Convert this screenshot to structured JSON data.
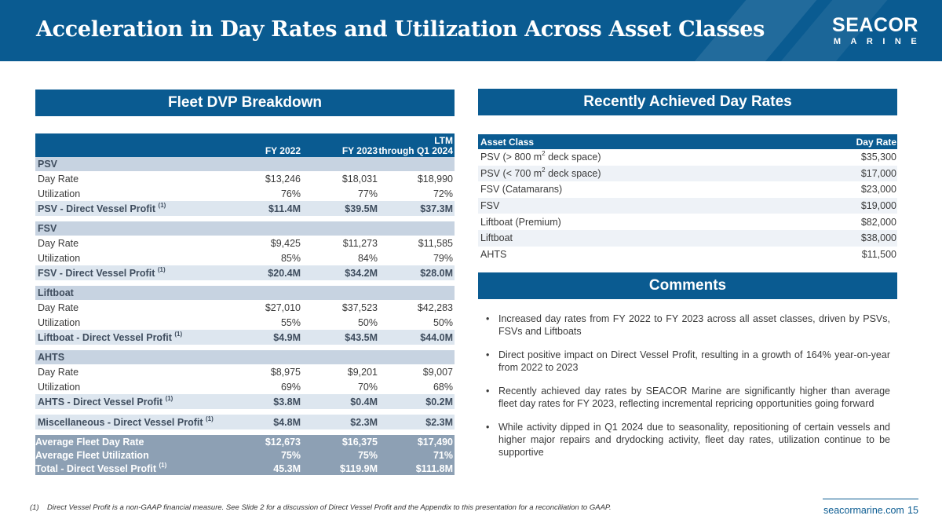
{
  "title": "Acceleration in Day Rates and Utilization Across Asset Classes",
  "logo": {
    "main": "SEACOR",
    "sub": "MARINE"
  },
  "left_panel": {
    "heading": "Fleet DVP Breakdown",
    "columns": [
      "",
      "FY 2022",
      "FY 2023",
      "LTM",
      "through Q1 2024"
    ],
    "sections": [
      {
        "name": "PSV",
        "day_rate": [
          "Day Rate",
          "$13,246",
          "$18,031",
          "$18,990"
        ],
        "utilization": [
          "Utilization",
          "76%",
          "77%",
          "72%"
        ],
        "dvp": [
          "PSV - Direct Vessel Profit",
          "$11.4M",
          "$39.5M",
          "$37.3M"
        ]
      },
      {
        "name": "FSV",
        "day_rate": [
          "Day Rate",
          "$9,425",
          "$11,273",
          "$11,585"
        ],
        "utilization": [
          "Utilization",
          "85%",
          "84%",
          "79%"
        ],
        "dvp": [
          "FSV - Direct Vessel Profit",
          "$20.4M",
          "$34.2M",
          "$28.0M"
        ]
      },
      {
        "name": "Liftboat",
        "day_rate": [
          "Day Rate",
          "$27,010",
          "$37,523",
          "$42,283"
        ],
        "utilization": [
          "Utilization",
          "55%",
          "50%",
          "50%"
        ],
        "dvp": [
          "Liftboat - Direct Vessel Profit",
          "$4.9M",
          "$43.5M",
          "$44.0M"
        ]
      },
      {
        "name": "AHTS",
        "day_rate": [
          "Day Rate",
          "$8,975",
          "$9,201",
          "$9,007"
        ],
        "utilization": [
          "Utilization",
          "69%",
          "70%",
          "68%"
        ],
        "dvp": [
          "AHTS - Direct Vessel Profit",
          "$3.8M",
          "$0.4M",
          "$0.2M"
        ]
      }
    ],
    "misc": [
      "Miscellaneous - Direct Vessel Profit",
      "$4.8M",
      "$2.3M",
      "$2.3M"
    ],
    "totals": [
      [
        "Average Fleet Day Rate",
        "$12,673",
        "$16,375",
        "$17,490"
      ],
      [
        "Average Fleet Utilization",
        "75%",
        "75%",
        "71%"
      ],
      [
        "Total - Direct Vessel Profit",
        "45.3M",
        "$119.9M",
        "$111.8M"
      ]
    ],
    "footnote_marker": "(1)"
  },
  "right_panel": {
    "heading": "Recently Achieved Day Rates",
    "columns": [
      "Asset Class",
      "Day Rate"
    ],
    "rows": [
      {
        "pre": "PSV (> 800 m",
        "sup": "2",
        "post": " deck space)",
        "rate": "$35,300"
      },
      {
        "pre": "PSV (< 700 m",
        "sup": "2",
        "post": " deck space)",
        "rate": "$17,000"
      },
      {
        "pre": "FSV (Catamarans)",
        "sup": "",
        "post": "",
        "rate": "$23,000"
      },
      {
        "pre": "FSV",
        "sup": "",
        "post": "",
        "rate": "$19,000"
      },
      {
        "pre": "Liftboat (Premium)",
        "sup": "",
        "post": "",
        "rate": "$82,000"
      },
      {
        "pre": "Liftboat",
        "sup": "",
        "post": "",
        "rate": "$38,000"
      },
      {
        "pre": "AHTS",
        "sup": "",
        "post": "",
        "rate": "$11,500"
      }
    ],
    "comments_heading": "Comments",
    "bullet": "•",
    "comments": [
      "Increased day rates from FY 2022 to FY 2023 across all asset classes, driven by PSVs, FSVs and Liftboats",
      "Direct positive impact on Direct Vessel Profit, resulting in a growth of 164% year-on-year from 2022 to 2023",
      "Recently achieved day rates by SEACOR Marine are significantly higher than average fleet day rates for FY 2023, reflecting incremental repricing opportunities going forward",
      "While activity dipped in Q1 2024 due to seasonality, repositioning of certain vessels and higher major repairs and drydocking activity, fleet day rates, utilization continue to be supportive"
    ]
  },
  "footer": {
    "footnote_num": "(1)",
    "footnote_text": "Direct Vessel Profit is a non-GAAP financial measure. See Slide 2 for a discussion of Direct Vessel Profit and the Appendix to this presentation for a reconciliation to GAAP.",
    "url": "seacormarine.com",
    "page": "15"
  }
}
